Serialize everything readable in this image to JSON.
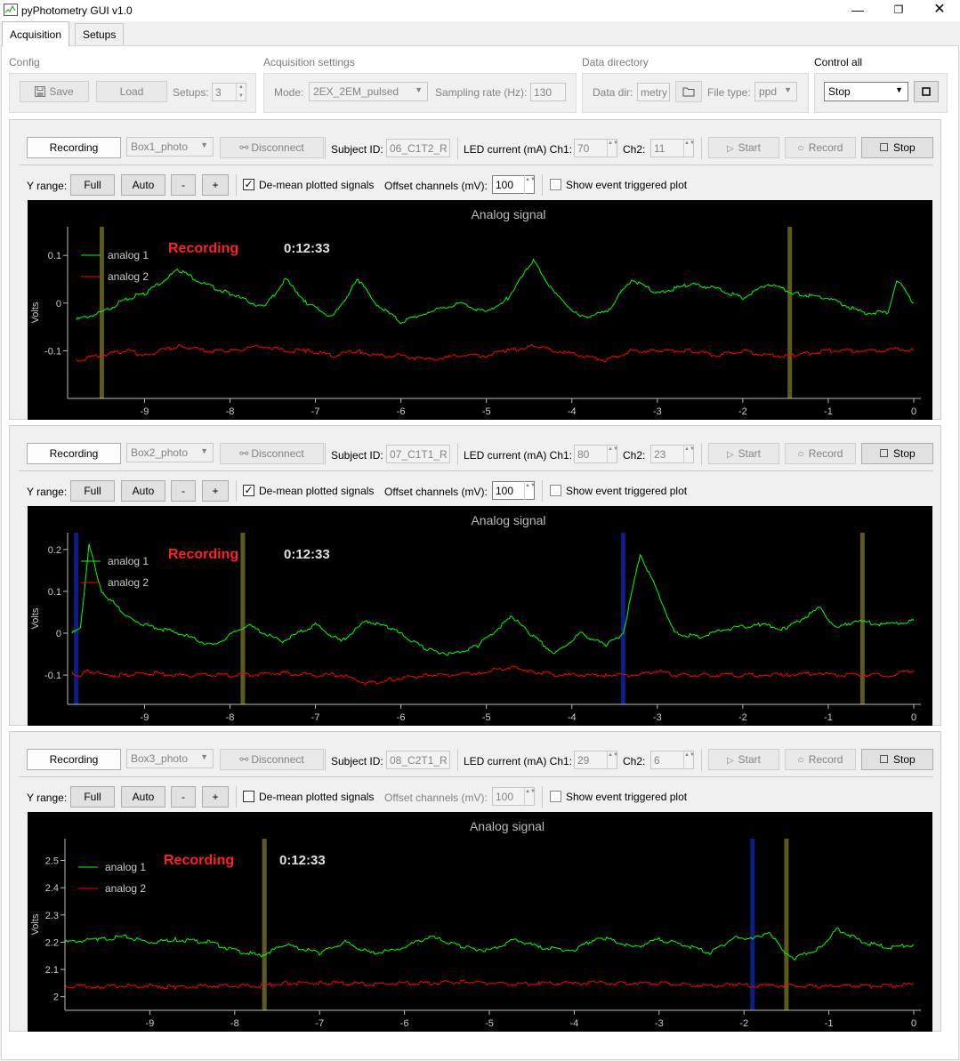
{
  "window": {
    "title": "pyPhotometry GUI v1.0",
    "min_glyph": "—",
    "max_glyph": "❐",
    "close_glyph": "✕"
  },
  "tabs": [
    {
      "label": "Acquisition",
      "active": true
    },
    {
      "label": "Setups",
      "active": false
    }
  ],
  "config": {
    "group_label": "Config",
    "save_label": "Save",
    "load_label": "Load",
    "setups_label": "Setups:",
    "setups_value": "3"
  },
  "acq": {
    "group_label": "Acquisition settings",
    "mode_label": "Mode:",
    "mode_value": "2EX_2EM_pulsed",
    "rate_label": "Sampling rate (Hz):",
    "rate_value": "130"
  },
  "datadir": {
    "group_label": "Data directory",
    "dir_label": "Data dir:",
    "dir_value": "metry",
    "filetype_label": "File type:",
    "filetype_value": "ppd"
  },
  "control_all": {
    "group_label": "Control all",
    "value": "Stop"
  },
  "common": {
    "recording_btn": "Recording",
    "disconnect": "Disconnect",
    "subject_label": "Subject ID:",
    "led_label": "LED current (mA) Ch1:",
    "ch2_label": "Ch2:",
    "start": "Start",
    "record": "Record",
    "stop": "Stop",
    "yrange_label": "Y range:",
    "full": "Full",
    "auto": "Auto",
    "minus": "-",
    "plus": "+",
    "demean_label": "De-mean plotted signals",
    "offset_label": "Offset channels (mV):",
    "event_label": "Show event triggered plot",
    "plot_title": "Analog signal",
    "status": "Recording",
    "ylabel": "Volts",
    "legend1": "analog 1",
    "legend2": "analog 2"
  },
  "setups": [
    {
      "box": "Box1_photo",
      "subject": "06_C1T2_R",
      "led_ch1": "70",
      "led_ch2": "11",
      "demean": true,
      "offset": "100",
      "time": "0:12:33",
      "yticks": [
        "0.1",
        "0",
        "-0.1"
      ],
      "xticks": [
        "-9",
        "-8",
        "-7",
        "-6",
        "-5",
        "-4",
        "-3",
        "-2",
        "-1",
        "0"
      ]
    },
    {
      "box": "Box2_photo",
      "subject": "07_C1T1_R",
      "led_ch1": "80",
      "led_ch2": "23",
      "demean": true,
      "offset": "100",
      "time": "0:12:33",
      "yticks": [
        "0.2",
        "0.1",
        "0",
        "-0.1"
      ],
      "xticks": [
        "-9",
        "-8",
        "-7",
        "-6",
        "-5",
        "-4",
        "-3",
        "-2",
        "-1",
        "0"
      ]
    },
    {
      "box": "Box3_photo",
      "subject": "08_C2T1_R",
      "led_ch1": "29",
      "led_ch2": "6",
      "demean": false,
      "offset": "100",
      "time": "0:12:33",
      "yticks": [
        "2.5",
        "2.4",
        "2.3",
        "2.2",
        "2.1",
        "2"
      ],
      "xticks": [
        "-9",
        "-8",
        "-7",
        "-6",
        "-5",
        "-4",
        "-3",
        "-2",
        "-1",
        "0"
      ]
    }
  ],
  "chart_data": [
    {
      "type": "line",
      "title": "Analog signal",
      "ylabel": "Volts",
      "xlim": [
        -9.9,
        0
      ],
      "ylim": [
        -0.2,
        0.16
      ],
      "x": [
        -9.8,
        -9.5,
        -9.2,
        -9,
        -8.6,
        -8.3,
        -8,
        -7.6,
        -7.35,
        -7.1,
        -6.8,
        -6.5,
        -6.3,
        -6,
        -5.7,
        -5.3,
        -5,
        -4.75,
        -4.45,
        -4.2,
        -3.9,
        -3.6,
        -3.3,
        -3,
        -2.6,
        -2.3,
        -2,
        -1.7,
        -1.4,
        -1,
        -0.6,
        -0.3,
        -0.2,
        0
      ],
      "series": [
        {
          "name": "analog 1",
          "color": "#00ff00",
          "values": [
            -0.035,
            -0.02,
            0.01,
            0.02,
            0.07,
            0.04,
            0.02,
            -0.01,
            0.05,
            0,
            -0.03,
            0.05,
            0,
            -0.04,
            -0.02,
            0,
            -0.02,
            0.01,
            0.09,
            0.02,
            -0.03,
            -0.02,
            0.05,
            0.02,
            0.04,
            0.03,
            0.01,
            0.04,
            0.02,
            0.01,
            -0.02,
            -0.02,
            0.05,
            0
          ]
        },
        {
          "name": "analog 2",
          "color": "#ff0000",
          "values": [
            -0.12,
            -0.11,
            -0.1,
            -0.11,
            -0.09,
            -0.1,
            -0.1,
            -0.09,
            -0.1,
            -0.1,
            -0.11,
            -0.1,
            -0.11,
            -0.11,
            -0.12,
            -0.11,
            -0.11,
            -0.1,
            -0.09,
            -0.1,
            -0.11,
            -0.12,
            -0.1,
            -0.1,
            -0.1,
            -0.11,
            -0.1,
            -0.11,
            -0.11,
            -0.1,
            -0.1,
            -0.1,
            -0.095,
            -0.1
          ]
        }
      ],
      "markers": [
        {
          "x": -9.5,
          "color": "#5c5a1c"
        },
        {
          "x": -1.45,
          "color": "#5c5a1c"
        }
      ]
    },
    {
      "type": "line",
      "title": "Analog signal",
      "ylabel": "Volts",
      "xlim": [
        -9.9,
        0
      ],
      "ylim": [
        -0.17,
        0.24
      ],
      "x": [
        -9.85,
        -9.75,
        -9.65,
        -9.5,
        -9.2,
        -9,
        -8.6,
        -8.2,
        -7.8,
        -7.4,
        -7,
        -6.7,
        -6.4,
        -6.1,
        -5.7,
        -5.4,
        -5.1,
        -4.7,
        -4.5,
        -4.2,
        -3.9,
        -3.6,
        -3.4,
        -3.2,
        -3,
        -2.8,
        -2.5,
        -2.2,
        -1.8,
        -1.5,
        -1.1,
        -0.9,
        -0.7,
        -0.3,
        0
      ],
      "series": [
        {
          "name": "analog 1",
          "color": "#00ff00",
          "values": [
            0,
            0.01,
            0.21,
            0.1,
            0.04,
            0.02,
            0,
            -0.03,
            0.02,
            -0.02,
            0.02,
            -0.02,
            0.03,
            0.01,
            -0.04,
            -0.05,
            -0.03,
            0.04,
            0,
            -0.05,
            0,
            -0.03,
            0,
            0.19,
            0.1,
            0,
            -0.01,
            0.01,
            0.02,
            0.01,
            0.06,
            0.01,
            0.03,
            0.02,
            0.03
          ]
        },
        {
          "name": "analog 2",
          "color": "#ff0000",
          "values": [
            -0.095,
            -0.1,
            -0.09,
            -0.1,
            -0.1,
            -0.095,
            -0.1,
            -0.1,
            -0.1,
            -0.095,
            -0.1,
            -0.1,
            -0.12,
            -0.11,
            -0.1,
            -0.1,
            -0.095,
            -0.08,
            -0.09,
            -0.1,
            -0.1,
            -0.1,
            -0.1,
            -0.1,
            -0.09,
            -0.1,
            -0.1,
            -0.1,
            -0.1,
            -0.1,
            -0.095,
            -0.1,
            -0.1,
            -0.1,
            -0.09
          ]
        }
      ],
      "markers": [
        {
          "x": -9.8,
          "color": "#0b1d86"
        },
        {
          "x": -7.85,
          "color": "#5c5a1c"
        },
        {
          "x": -3.4,
          "color": "#0b1d86"
        },
        {
          "x": -0.6,
          "color": "#5c5a1c"
        }
      ]
    },
    {
      "type": "line",
      "title": "Analog signal",
      "ylabel": "Volts",
      "xlim": [
        -10,
        0
      ],
      "ylim": [
        1.95,
        2.58
      ],
      "x": [
        -10,
        -9.6,
        -9.3,
        -9,
        -8.7,
        -8.3,
        -8,
        -7.7,
        -7.4,
        -7,
        -6.7,
        -6.4,
        -6.1,
        -5.7,
        -5.3,
        -5,
        -4.7,
        -4.4,
        -4,
        -3.7,
        -3.3,
        -3,
        -2.7,
        -2.4,
        -2.1,
        -1.9,
        -1.7,
        -1.55,
        -1.4,
        -1.1,
        -0.9,
        -0.6,
        -0.3,
        0
      ],
      "series": [
        {
          "name": "analog 1",
          "color": "#00ff00",
          "values": [
            2.2,
            2.21,
            2.22,
            2.2,
            2.21,
            2.2,
            2.17,
            2.15,
            2.19,
            2.16,
            2.2,
            2.16,
            2.17,
            2.22,
            2.18,
            2.17,
            2.21,
            2.18,
            2.17,
            2.22,
            2.18,
            2.21,
            2.19,
            2.16,
            2.22,
            2.21,
            2.24,
            2.17,
            2.14,
            2.18,
            2.25,
            2.2,
            2.18,
            2.19
          ]
        },
        {
          "name": "analog 2",
          "color": "#ff0000",
          "values": [
            2.04,
            2.035,
            2.04,
            2.04,
            2.035,
            2.04,
            2.04,
            2.04,
            2.05,
            2.05,
            2.05,
            2.045,
            2.05,
            2.05,
            2.055,
            2.05,
            2.045,
            2.05,
            2.05,
            2.05,
            2.05,
            2.05,
            2.045,
            2.04,
            2.045,
            2.04,
            2.04,
            2.04,
            2.04,
            2.035,
            2.04,
            2.04,
            2.04,
            2.045
          ]
        }
      ],
      "markers": [
        {
          "x": -7.65,
          "color": "#5c5a1c"
        },
        {
          "x": -1.9,
          "color": "#0b1d86"
        },
        {
          "x": -1.5,
          "color": "#5c5a1c"
        }
      ]
    }
  ]
}
